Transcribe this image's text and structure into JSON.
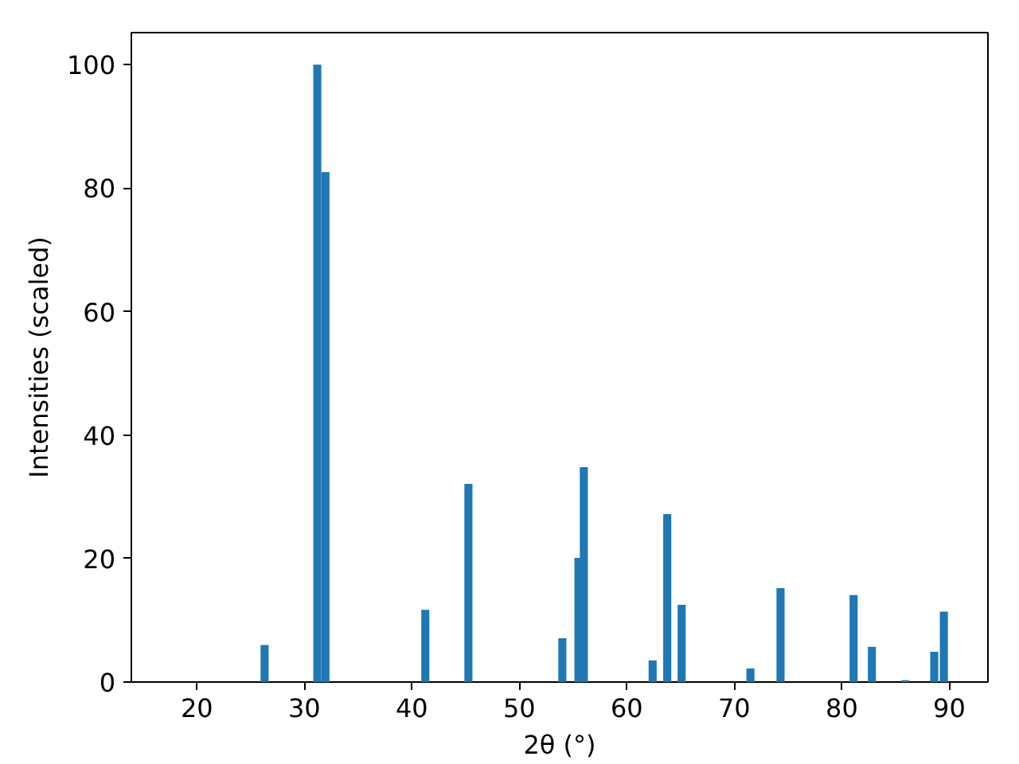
{
  "chart_data": {
    "type": "bar",
    "xlabel": "2θ (°)",
    "ylabel": "Intensities (scaled)",
    "x": [
      26.3,
      31.2,
      31.96,
      41.25,
      45.26,
      54.0,
      55.5,
      56.0,
      62.4,
      63.76,
      65.1,
      71.5,
      74.3,
      81.1,
      82.8,
      85.9,
      88.6,
      89.5
    ],
    "values": [
      6.0,
      100,
      82.6,
      11.7,
      32.1,
      7.1,
      20.1,
      34.8,
      3.5,
      27.2,
      12.5,
      2.2,
      15.2,
      14.1,
      5.7,
      0.3,
      4.9,
      11.4
    ],
    "color": "#1f77b4",
    "xlim": [
      13.9,
      93.6
    ],
    "ylim": [
      0,
      105.2
    ],
    "xticks": [
      20,
      30,
      40,
      50,
      60,
      70,
      80,
      90
    ],
    "yticks": [
      0,
      20,
      40,
      60,
      80,
      100
    ],
    "grid": false
  }
}
